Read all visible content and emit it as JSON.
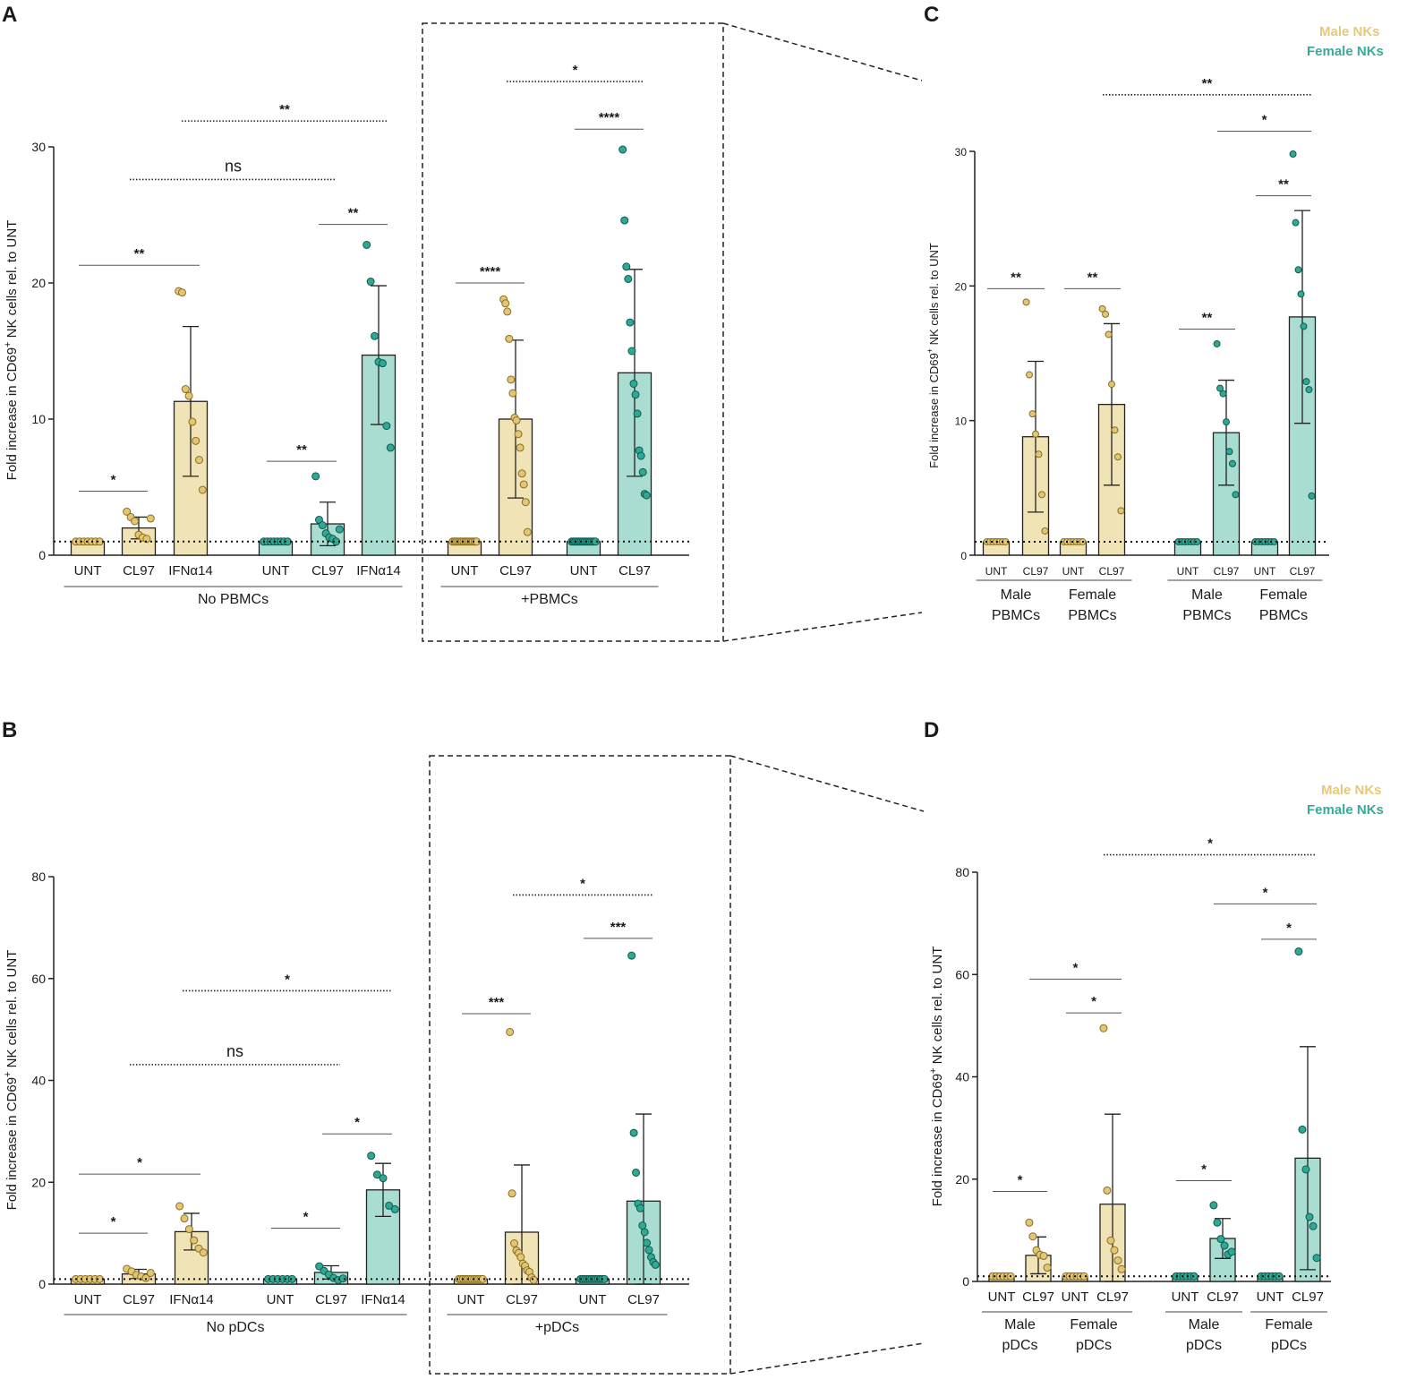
{
  "colors": {
    "male": "#f0e3b5",
    "male_dot": "#e3c577",
    "male_stroke": "#8a6f1e",
    "female": "#a9ddd2",
    "female_dot": "#2fa896",
    "female_stroke": "#105a4e",
    "legend_male": "#e8c77a",
    "legend_female": "#3aaa98"
  },
  "chart_data": [
    {
      "panel": "A",
      "type": "bar",
      "ylabel": "Fold increase in CD69+ NK cells rel. to UNT",
      "ylabel_main": "Fold increase in CD69",
      "ylabel_sup": "+",
      "ylabel_tail": " NK cells rel. to UNT",
      "ylim": [
        0,
        30
      ],
      "yticks": [
        "0",
        "10",
        "20",
        "30"
      ],
      "ytick_values": [
        0,
        10,
        20,
        30
      ],
      "baseline": 1,
      "categories": [
        "UNT",
        "CL97",
        "IFNα14",
        "UNT",
        "CL97",
        "IFNα14",
        "UNT",
        "CL97",
        "UNT",
        "CL97"
      ],
      "series_color": [
        "male",
        "male",
        "male",
        "female",
        "female",
        "female",
        "male",
        "male",
        "female",
        "female"
      ],
      "values": [
        1,
        2,
        11.3,
        1,
        2.3,
        14.7,
        1,
        10,
        1,
        13.4
      ],
      "sd": [
        0,
        0.8,
        5.5,
        0,
        1.6,
        5.1,
        0,
        5.8,
        0,
        7.6
      ],
      "points": [
        [
          1,
          1,
          1,
          1,
          1,
          1,
          1
        ],
        [
          3.2,
          2.8,
          2.5,
          1.5,
          1.3,
          1.2,
          2.7
        ],
        [
          19.4,
          19.3,
          12.2,
          11.7,
          9.8,
          8.4,
          7.0,
          4.8
        ],
        [
          1,
          1,
          1,
          1,
          1,
          1,
          1,
          1
        ],
        [
          5.8,
          2.6,
          2.2,
          1.6,
          1.3,
          1.2,
          1.0,
          1.9
        ],
        [
          22.8,
          20.1,
          16.1,
          14.2,
          14.1,
          9.5,
          7.9
        ],
        [
          1,
          1,
          1,
          1,
          1,
          1,
          1,
          1,
          1,
          1,
          1,
          1,
          1,
          1
        ],
        [
          18.8,
          18.5,
          17.9,
          15.9,
          12.9,
          11.9,
          10.1,
          9.9,
          8.9,
          7.9,
          6.0,
          5.2,
          3.9,
          1.7
        ],
        [
          1,
          1,
          1,
          1,
          1,
          1,
          1,
          1,
          1,
          1,
          1,
          1,
          1,
          1
        ],
        [
          29.8,
          24.6,
          21.2,
          20.3,
          17.1,
          15.0,
          12.6,
          11.8,
          10.4,
          7.7,
          7.3,
          6.1,
          4.5,
          4.4
        ]
      ],
      "groups": [
        {
          "label": "No PBMCs",
          "from": 0,
          "to": 5
        },
        {
          "label": "+PBMCs",
          "from": 6,
          "to": 9
        }
      ],
      "annotations": [
        {
          "text": "*",
          "from": 0,
          "to": 1,
          "y": 4.7,
          "style": "solid"
        },
        {
          "text": "**",
          "from": 0,
          "to": 2,
          "y": 21.3,
          "style": "solid"
        },
        {
          "text": "**",
          "from": 3,
          "to": 4,
          "y": 6.9,
          "style": "solid"
        },
        {
          "text": "**",
          "from": 4,
          "to": 5,
          "y": 24.3,
          "style": "solid"
        },
        {
          "text": "ns",
          "from": 1,
          "to": 4,
          "y": 27.6,
          "style": "dotted"
        },
        {
          "text": "**",
          "from": 2,
          "to": 5,
          "y": 31.9,
          "style": "dotted"
        },
        {
          "text": "****",
          "from": 6,
          "to": 7,
          "y": 20.0,
          "style": "solid"
        },
        {
          "text": "****",
          "from": 8,
          "to": 9,
          "y": 31.3,
          "style": "solid"
        },
        {
          "text": "*",
          "from": 7,
          "to": 9,
          "y": 34.8,
          "style": "dotted"
        }
      ]
    },
    {
      "panel": "C",
      "type": "bar",
      "ylabel": "Fold increase in CD69+ NK cells rel. to UNT",
      "ylabel_main": "Fold increase in CD69",
      "ylabel_sup": "+",
      "ylabel_tail": " NK cells rel. to UNT",
      "ylim": [
        0,
        30
      ],
      "yticks": [
        "0",
        "10",
        "20",
        "30"
      ],
      "ytick_values": [
        0,
        10,
        20,
        30
      ],
      "baseline": 1,
      "categories": [
        "UNT",
        "CL97",
        "UNT",
        "CL97",
        "UNT",
        "CL97",
        "UNT",
        "CL97"
      ],
      "series_color": [
        "male",
        "male",
        "male",
        "male",
        "female",
        "female",
        "female",
        "female"
      ],
      "values": [
        1,
        8.8,
        1,
        11.2,
        1,
        9.1,
        1,
        17.7
      ],
      "sd": [
        0,
        5.6,
        0,
        6.0,
        0,
        3.9,
        0,
        7.9
      ],
      "points": [
        [
          1,
          1,
          1,
          1,
          1,
          1,
          1
        ],
        [
          18.8,
          13.4,
          10.5,
          9.0,
          7.5,
          4.5,
          1.8
        ],
        [
          1,
          1,
          1,
          1,
          1,
          1,
          1
        ],
        [
          18.3,
          17.9,
          16.4,
          12.7,
          9.3,
          7.3,
          3.3
        ],
        [
          1,
          1,
          1,
          1,
          1,
          1,
          1
        ],
        [
          15.7,
          12.4,
          12.0,
          9.9,
          7.7,
          6.8,
          4.5
        ],
        [
          1,
          1,
          1,
          1,
          1,
          1,
          1
        ],
        [
          29.8,
          24.7,
          21.2,
          19.4,
          17.0,
          12.9,
          12.3,
          4.4
        ]
      ],
      "groups": [
        {
          "label": "Male",
          "label2": "PBMCs",
          "from": 0,
          "to": 1
        },
        {
          "label": "Female",
          "label2": "PBMCs",
          "from": 2,
          "to": 3
        },
        {
          "label": "Male",
          "label2": "PBMCs",
          "from": 4,
          "to": 5
        },
        {
          "label": "Female",
          "label2": "PBMCs",
          "from": 6,
          "to": 7
        }
      ],
      "annotations": [
        {
          "text": "**",
          "from": 0,
          "to": 1,
          "y": 19.8,
          "style": "solid"
        },
        {
          "text": "**",
          "from": 2,
          "to": 3,
          "y": 19.8,
          "style": "solid"
        },
        {
          "text": "**",
          "from": 4,
          "to": 5,
          "y": 16.8,
          "style": "solid"
        },
        {
          "text": "**",
          "from": 6,
          "to": 7,
          "y": 26.7,
          "style": "solid"
        },
        {
          "text": "*",
          "from": 5,
          "to": 7,
          "y": 31.5,
          "style": "solid"
        },
        {
          "text": "**",
          "from": 3,
          "to": 7,
          "y": 34.2,
          "style": "dotted"
        }
      ],
      "legend": [
        "Male NKs",
        "Female NKs"
      ]
    },
    {
      "panel": "B",
      "type": "bar",
      "ylabel": "Fold increase in CD69+ NK cells rel. to UNT",
      "ylabel_main": "Fold increase in CD69",
      "ylabel_sup": "+",
      "ylabel_tail": " NK cells rel. to UNT",
      "ylim": [
        0,
        80
      ],
      "yticks": [
        "0",
        "20",
        "40",
        "60",
        "80"
      ],
      "ytick_values": [
        0,
        20,
        40,
        60,
        80
      ],
      "baseline": 1,
      "categories": [
        "UNT",
        "CL97",
        "IFNα14",
        "UNT",
        "CL97",
        "IFNα14",
        "UNT",
        "CL97",
        "UNT",
        "CL97"
      ],
      "series_color": [
        "male",
        "male",
        "male",
        "female",
        "female",
        "female",
        "male",
        "male",
        "female",
        "female"
      ],
      "values": [
        1,
        2,
        10.3,
        1,
        2.3,
        18.5,
        1,
        10.2,
        1,
        16.3
      ],
      "sd": [
        0,
        0.9,
        3.6,
        0,
        1.3,
        5.2,
        0,
        13.2,
        0,
        17.1
      ],
      "points": [
        [
          1,
          1,
          1,
          1,
          1,
          1
        ],
        [
          3.0,
          2.5,
          1.8,
          1.5,
          1.2,
          2.2
        ],
        [
          15.3,
          12.9,
          10.8,
          8.6,
          7.0,
          6.2
        ],
        [
          1,
          1,
          1,
          1,
          1,
          1
        ],
        [
          3.5,
          2.6,
          1.9,
          1.2,
          0.8,
          1.1
        ],
        [
          25.2,
          21.5,
          20.8,
          15.4,
          14.7
        ],
        [
          1,
          1,
          1,
          1,
          1,
          1,
          1,
          1,
          1,
          1,
          1,
          1
        ],
        [
          49.5,
          17.8,
          8.0,
          6.6,
          6.1,
          5.3,
          4.0,
          3.6,
          2.7,
          2.4,
          1.3,
          0.8
        ],
        [
          1,
          1,
          1,
          1,
          1,
          1,
          1,
          1,
          1,
          1,
          1,
          1
        ],
        [
          64.5,
          29.7,
          21.9,
          15.8,
          14.9,
          11.5,
          10.2,
          8.1,
          6.7,
          5.3,
          4.3,
          3.8
        ]
      ],
      "groups": [
        {
          "label": "No pDCs",
          "from": 0,
          "to": 5
        },
        {
          "label": "+pDCs",
          "from": 6,
          "to": 9
        }
      ],
      "annotations": [
        {
          "text": "*",
          "from": 0,
          "to": 1,
          "y": 10,
          "style": "solid"
        },
        {
          "text": "*",
          "from": 0,
          "to": 2,
          "y": 21.6,
          "style": "solid"
        },
        {
          "text": "*",
          "from": 3,
          "to": 4,
          "y": 11,
          "style": "solid"
        },
        {
          "text": "*",
          "from": 4,
          "to": 5,
          "y": 29.5,
          "style": "solid"
        },
        {
          "text": "ns",
          "from": 1,
          "to": 4,
          "y": 43.1,
          "style": "dotted"
        },
        {
          "text": "*",
          "from": 2,
          "to": 5,
          "y": 57.6,
          "style": "dotted"
        },
        {
          "text": "***",
          "from": 6,
          "to": 7,
          "y": 53.1,
          "style": "solid"
        },
        {
          "text": "***",
          "from": 8,
          "to": 9,
          "y": 67.9,
          "style": "solid"
        },
        {
          "text": "*",
          "from": 7,
          "to": 9,
          "y": 76.4,
          "style": "dotted"
        }
      ]
    },
    {
      "panel": "D",
      "type": "bar",
      "ylabel": "Fold increase in CD69+ NK cells rel. to UNT",
      "ylabel_main": "Fold increase in CD69",
      "ylabel_sup": "+",
      "ylabel_tail": " NK cells rel. to UNT",
      "ylim": [
        0,
        80
      ],
      "yticks": [
        "0",
        "20",
        "40",
        "60",
        "80"
      ],
      "ytick_values": [
        0,
        20,
        40,
        60,
        80
      ],
      "baseline": 1,
      "categories": [
        "UNT",
        "CL97",
        "UNT",
        "CL97",
        "UNT",
        "CL97",
        "UNT",
        "CL97"
      ],
      "series_color": [
        "male",
        "male",
        "male",
        "male",
        "female",
        "female",
        "female",
        "female"
      ],
      "values": [
        1,
        5.1,
        1,
        15.1,
        1,
        8.4,
        1,
        24.1
      ],
      "sd": [
        0,
        3.6,
        0,
        17.6,
        0,
        3.9,
        0,
        21.8
      ],
      "points": [
        [
          1,
          1,
          1,
          1,
          1,
          1
        ],
        [
          11.5,
          8.8,
          6.1,
          5.2,
          5.0,
          2.7
        ],
        [
          1,
          1,
          1,
          1,
          1,
          1
        ],
        [
          49.5,
          17.8,
          8.0,
          6.1,
          4.1,
          2.4
        ],
        [
          1,
          1,
          1,
          1,
          1,
          1
        ],
        [
          14.9,
          11.5,
          8.3,
          7.0,
          5.3,
          5.8
        ],
        [
          1,
          1,
          1,
          1,
          1,
          1
        ],
        [
          64.5,
          29.7,
          21.9,
          12.6,
          10.8,
          4.6
        ]
      ],
      "groups": [
        {
          "label": "Male",
          "label2": "pDCs",
          "from": 0,
          "to": 1
        },
        {
          "label": "Female",
          "label2": "pDCs",
          "from": 2,
          "to": 3
        },
        {
          "label": "Male",
          "label2": "pDCs",
          "from": 4,
          "to": 5
        },
        {
          "label": "Female",
          "label2": "pDCs",
          "from": 6,
          "to": 7
        }
      ],
      "annotations": [
        {
          "text": "*",
          "from": 0,
          "to": 1,
          "y": 17.6,
          "style": "solid"
        },
        {
          "text": "*",
          "from": 2,
          "to": 3,
          "y": 52.5,
          "style": "solid"
        },
        {
          "text": "*",
          "from": 1,
          "to": 3,
          "y": 59.1,
          "style": "solid"
        },
        {
          "text": "*",
          "from": 4,
          "to": 5,
          "y": 19.7,
          "style": "solid"
        },
        {
          "text": "*",
          "from": 6,
          "to": 7,
          "y": 66.9,
          "style": "solid"
        },
        {
          "text": "*",
          "from": 5,
          "to": 7,
          "y": 73.8,
          "style": "solid"
        },
        {
          "text": "*",
          "from": 3,
          "to": 7,
          "y": 83.4,
          "style": "dotted"
        }
      ],
      "legend": [
        "Male NKs",
        "Female NKs"
      ]
    }
  ]
}
